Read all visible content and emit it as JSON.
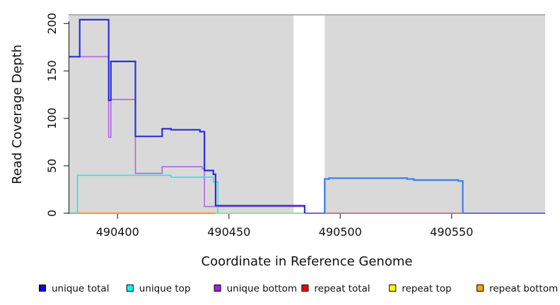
{
  "chart_data": {
    "type": "line",
    "subtype": "step-coverage",
    "title": "",
    "xlabel": "Coordinate in Reference Genome",
    "ylabel": "Read Coverage Depth",
    "xlim": [
      490378,
      490592
    ],
    "ylim": [
      0,
      213
    ],
    "x_ticks": [
      490400,
      490450,
      490500,
      490550
    ],
    "y_ticks": [
      0,
      50,
      100,
      150,
      200
    ],
    "grid": false,
    "legend_position": "bottom",
    "plot_bg_regions": [
      {
        "from": 490378,
        "to": 490479,
        "color": "#d9d9d9"
      },
      {
        "from": 490493,
        "to": 490592,
        "color": "#d9d9d9"
      }
    ],
    "top_border_color": "#b0b0b0",
    "axis_color": "#333333",
    "series": [
      {
        "name": "unique total",
        "color": "#0000ff",
        "steps": [
          [
            490378,
            165
          ],
          [
            490383,
            204
          ],
          [
            490396,
            119
          ],
          [
            490397,
            160
          ],
          [
            490408,
            81
          ],
          [
            490420,
            89
          ],
          [
            490424,
            88
          ],
          [
            490437,
            86
          ],
          [
            490439,
            45
          ],
          [
            490443,
            41
          ],
          [
            490444,
            8
          ],
          [
            490484,
            0
          ],
          [
            490493,
            36
          ],
          [
            490495,
            37
          ],
          [
            490530,
            36
          ],
          [
            490533,
            35
          ],
          [
            490553,
            34
          ],
          [
            490555,
            0
          ]
        ],
        "end": 490592
      },
      {
        "name": "unique top",
        "color": "#00ffff",
        "steps": [
          [
            490378,
            0
          ],
          [
            490382,
            40
          ],
          [
            490424,
            38
          ],
          [
            490443,
            33
          ],
          [
            490445,
            0
          ]
        ],
        "end": 490592
      },
      {
        "name": "unique bottom",
        "color": "#a020f0",
        "steps": [
          [
            490378,
            165
          ],
          [
            490396,
            80
          ],
          [
            490397,
            120
          ],
          [
            490408,
            42
          ],
          [
            490420,
            49
          ],
          [
            490438,
            47
          ],
          [
            490439,
            7
          ],
          [
            490484,
            0
          ]
        ],
        "end": 490592
      },
      {
        "name": "repeat total",
        "color": "#ff0000",
        "steps": [
          [
            490378,
            0
          ]
        ],
        "end": 490592,
        "visible_run": [
          490493,
          490555
        ]
      },
      {
        "name": "repeat top",
        "color": "#ffff00",
        "steps": [
          [
            490378,
            0
          ]
        ],
        "end": 490592,
        "visible_run": [
          490445,
          490484
        ],
        "note": "appears light green where it overlaps unique top at zero"
      },
      {
        "name": "repeat bottom",
        "color": "#ffa500",
        "steps": [
          [
            490378,
            0
          ]
        ],
        "end": 490592,
        "visible_run": [
          490378,
          490444
        ]
      }
    ],
    "draw_segments": [
      {
        "id": "repeat-bottom-zero-line",
        "color": "#ff9d26",
        "width": 2.2,
        "points": [
          [
            490378,
            0
          ]
        ],
        "end": 490444
      },
      {
        "id": "repeat-top-unique-top-overlap-zero-line",
        "color": "#9cdca2",
        "width": 2,
        "points": [
          [
            490444,
            0
          ]
        ],
        "end": 490484
      },
      {
        "id": "total-bottom-overlap-zero-line-left",
        "color": "#6e66ea",
        "width": 2,
        "points": [
          [
            490484,
            0
          ]
        ],
        "end": 490493
      },
      {
        "id": "repeat-total-zero-line",
        "color": "#d84a62",
        "width": 1.6,
        "points": [
          [
            490493,
            0
          ]
        ],
        "end": 490555
      },
      {
        "id": "total-bottom-overlap-zero-line-right",
        "color": "#6e66ea",
        "width": 2,
        "points": [
          [
            490555,
            0
          ]
        ],
        "end": 490592
      },
      {
        "id": "unique-bottom-line",
        "color": "#b266e2",
        "width": 1.6,
        "points": [
          [
            490378,
            165
          ],
          [
            490396,
            80
          ],
          [
            490397,
            120
          ],
          [
            490408,
            42
          ],
          [
            490420,
            49
          ],
          [
            490438,
            47
          ],
          [
            490439,
            7
          ],
          [
            490484,
            0
          ]
        ],
        "end": 490484
      },
      {
        "id": "unique-top-line",
        "color": "#35e2e9",
        "width": 1.6,
        "points": [
          [
            490378,
            0
          ],
          [
            490382,
            40
          ],
          [
            490424,
            38
          ],
          [
            490443,
            33
          ],
          [
            490445,
            0
          ]
        ],
        "end": 490445
      },
      {
        "id": "unique-total-line-left",
        "color": "#2d2ddd",
        "width": 2.2,
        "points": [
          [
            490378,
            165
          ],
          [
            490383,
            204
          ],
          [
            490396,
            119
          ],
          [
            490397,
            160
          ],
          [
            490408,
            81
          ],
          [
            490420,
            89
          ],
          [
            490424,
            88
          ],
          [
            490437,
            86
          ],
          [
            490439,
            45
          ],
          [
            490443,
            41
          ],
          [
            490444,
            8
          ],
          [
            490484,
            0
          ]
        ],
        "end": 490484
      },
      {
        "id": "unique-total-line-right",
        "color": "#4484ee",
        "width": 2.4,
        "points": [
          [
            490493,
            0
          ],
          [
            490493,
            36
          ],
          [
            490495,
            37
          ],
          [
            490530,
            36
          ],
          [
            490533,
            35
          ],
          [
            490553,
            34
          ],
          [
            490555,
            0
          ]
        ],
        "end": 490555
      }
    ]
  },
  "legend": {
    "items": [
      {
        "label": "unique total",
        "color": "#0000ff"
      },
      {
        "label": "unique top",
        "color": "#00ffff"
      },
      {
        "label": "unique bottom",
        "color": "#a020f0"
      },
      {
        "label": "repeat total",
        "color": "#ff0000"
      },
      {
        "label": "repeat top",
        "color": "#ffff00"
      },
      {
        "label": "repeat bottom",
        "color": "#ffa500"
      }
    ]
  }
}
